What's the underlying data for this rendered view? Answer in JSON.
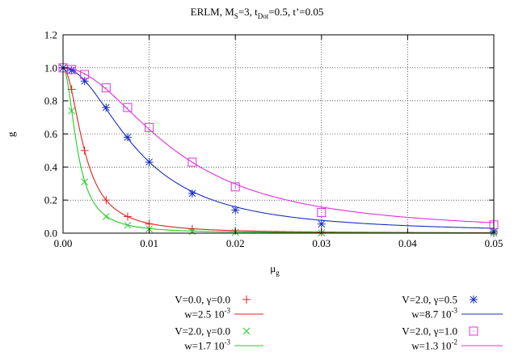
{
  "chart_data": {
    "type": "scatter",
    "title": {
      "main": "ERLM, M",
      "ms_sub": "S",
      "ms_val": "=3, t",
      "td_sub": "Dot",
      "rest": "=0.5, t’=0.05"
    },
    "xlabel": {
      "main": "μ",
      "sub": "g"
    },
    "ylabel": "g",
    "xlim": [
      0,
      0.05
    ],
    "ylim": [
      0,
      1.2
    ],
    "xticks": [
      {
        "v": 0,
        "label": "0.00"
      },
      {
        "v": 0.01,
        "label": "0.01"
      },
      {
        "v": 0.02,
        "label": "0.02"
      },
      {
        "v": 0.03,
        "label": "0.03"
      },
      {
        "v": 0.04,
        "label": "0.04"
      },
      {
        "v": 0.05,
        "label": "0.05"
      }
    ],
    "yticks": [
      {
        "v": 0,
        "label": "0.0"
      },
      {
        "v": 0.2,
        "label": "0.2"
      },
      {
        "v": 0.4,
        "label": "0.4"
      },
      {
        "v": 0.6,
        "label": "0.6"
      },
      {
        "v": 0.8,
        "label": "0.8"
      },
      {
        "v": 1.0,
        "label": "1.0"
      },
      {
        "v": 1.2,
        "label": "1.2"
      }
    ],
    "grid": true,
    "series": [
      {
        "name": "V=0.0, γ=0.0",
        "marker": "plus",
        "color": "#e0201f",
        "x": [
          0,
          0.001,
          0.0025,
          0.005,
          0.0075,
          0.01,
          0.015,
          0.02,
          0.03,
          0.05
        ],
        "y": [
          1.0,
          0.87,
          0.5,
          0.2,
          0.1,
          0.055,
          0.025,
          0.015,
          0.005,
          0.0
        ],
        "fit_label": {
          "base": "w=2.5 10",
          "exp": "-3"
        },
        "w": 0.0025,
        "fit_color": "#e0201f"
      },
      {
        "name": "V=2.0, γ=0.0",
        "marker": "cross",
        "color": "#22cc22",
        "x": [
          0,
          0.001,
          0.0025,
          0.005,
          0.0075,
          0.01,
          0.015,
          0.02,
          0.03,
          0.05
        ],
        "y": [
          1.0,
          0.74,
          0.31,
          0.1,
          0.048,
          0.025,
          0.01,
          0.005,
          0.002,
          0.0
        ],
        "fit_label": {
          "base": "w=1.7 10",
          "exp": "-3"
        },
        "w": 0.0017,
        "fit_color": "#22cc22"
      },
      {
        "name": "V=2.0, γ=0.5",
        "marker": "star",
        "color": "#1b2fc4",
        "x": [
          0,
          0.001,
          0.0025,
          0.005,
          0.0075,
          0.01,
          0.015,
          0.02,
          0.03,
          0.05
        ],
        "y": [
          1.0,
          0.985,
          0.92,
          0.76,
          0.58,
          0.43,
          0.24,
          0.14,
          0.055,
          0.01
        ],
        "fit_label": {
          "base": "w=8.7 10",
          "exp": "-3"
        },
        "w": 0.0087,
        "fit_color": "#1b2fc4"
      },
      {
        "name": "V=2.0, γ=1.0",
        "marker": "square",
        "color": "#e030e0",
        "x": [
          0,
          0.001,
          0.0025,
          0.005,
          0.0075,
          0.01,
          0.015,
          0.02,
          0.03,
          0.05
        ],
        "y": [
          1.0,
          0.99,
          0.96,
          0.88,
          0.76,
          0.64,
          0.43,
          0.28,
          0.125,
          0.05
        ],
        "fit_label": {
          "base": "w=1.3 10",
          "exp": "-2"
        },
        "w": 0.013,
        "fit_color": "#e030e0"
      }
    ],
    "legend_placement": "bottom"
  }
}
